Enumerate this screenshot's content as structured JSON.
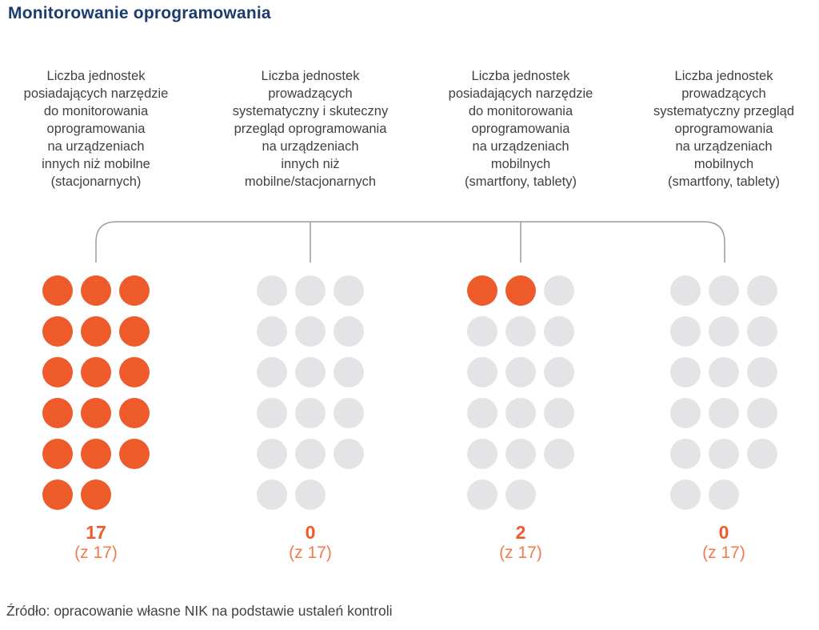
{
  "title": "Monitorowanie oprogramowania",
  "source_note": "Źródło: opracowanie własne NIK na podstawie ustaleń kontroli",
  "colors": {
    "orange": "#EE5B2B",
    "orange_light": "#F3794E",
    "dot_gray": "#E4E4E6",
    "line_gray": "#9C9C9E",
    "title_navy": "#1D3C6E",
    "text_gray": "#414042"
  },
  "chart_data": {
    "type": "pictogram",
    "title": "Monitorowanie oprogramowania",
    "total_units": 17,
    "of_total_label": "(z 17)",
    "dot_rows_layout": [
      3,
      3,
      3,
      3,
      3,
      2
    ],
    "columns": [
      {
        "label": "Liczba jednostek posiadających narzędzie do monitorowania oprogramowania na urządzeniach innych niż mobilne (stacjonarnych)",
        "label_lines": [
          "Liczba jednostek",
          "posiadających narzędzie",
          "do monitorowania",
          "oprogramowania",
          "na urządzeniach",
          "innych niż mobilne",
          "(stacjonarnych)"
        ],
        "value": 17
      },
      {
        "label": "Liczba jednostek prowadzących systematyczny i skuteczny przegląd oprogramowania na urządzeniach innych niż mobilne/stacjonarnych",
        "label_lines": [
          "Liczba jednostek",
          "prowadzących",
          "systematyczny i skuteczny",
          "przegląd oprogramowania",
          "na urządzeniach",
          "innych niż",
          "mobilne/stacjonarnych"
        ],
        "value": 0
      },
      {
        "label": "Liczba jednostek posiadających narzędzie do monitorowania oprogramowania na urządzeniach mobilnych (smartfony, tablety)",
        "label_lines": [
          "Liczba jednostek",
          "posiadających narzędzie",
          "do monitorowania",
          "oprogramowania",
          "na urządzeniach",
          "mobilnych",
          "(smartfony, tablety)"
        ],
        "value": 2
      },
      {
        "label": "Liczba jednostek prowadzących systematyczny przegląd oprogramowania na urządzeniach mobilnych (smartfony, tablety)",
        "label_lines": [
          "Liczba jednostek",
          "prowadzących",
          "systematyczny przegląd",
          "oprogramowania",
          "na urządzeniach",
          "mobilnych",
          "(smartfony, tablety)"
        ],
        "value": 0
      }
    ]
  }
}
